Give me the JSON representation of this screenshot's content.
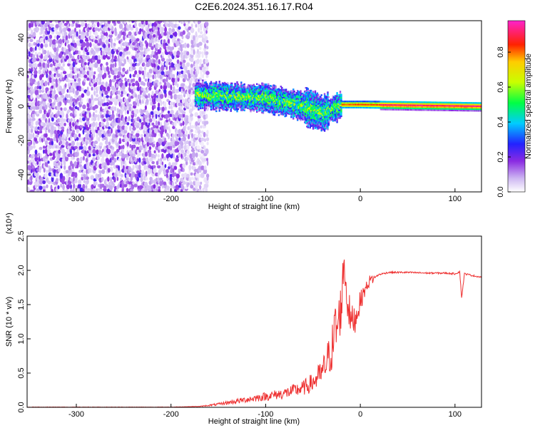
{
  "title": "C2E6.2024.351.16.17.R04",
  "chart_data": [
    {
      "type": "heatmap",
      "xlabel": "Height of straight line (km)",
      "ylabel": "Frequency (Hz)",
      "xlim": [
        -352,
        128
      ],
      "ylim": [
        -50,
        50
      ],
      "xticks": [
        -300,
        -200,
        -100,
        0,
        100
      ],
      "yticks": [
        -40,
        -20,
        0,
        20,
        40
      ],
      "colorbar": {
        "label": "Normalized spectral amplitude",
        "range": [
          0,
          0.98
        ],
        "ticks": [
          "0.0",
          "0.2",
          "0.4",
          "0.6",
          "0.8"
        ],
        "colormap": "white-purple-blue-cyan-green-yellow-red-magenta"
      },
      "features": {
        "noise_region_x": [
          -352,
          -162
        ],
        "signal_region_x": [
          -175,
          128
        ],
        "signal_center_hz": [
          [
            -175,
            7
          ],
          [
            -150,
            6
          ],
          [
            -100,
            5
          ],
          [
            -60,
            0
          ],
          [
            -40,
            -4
          ],
          [
            -20,
            1
          ],
          [
            0,
            1
          ],
          [
            128,
            0
          ]
        ],
        "signal_peak_amplitude": 0.95
      }
    },
    {
      "type": "line",
      "xlabel": "Height of straight line (km)",
      "ylabel": "SNR (10 * v/v)",
      "y_multiplier": "(x10⁴)",
      "xlim": [
        -352,
        128
      ],
      "ylim": [
        0,
        2.5
      ],
      "xticks": [
        -300,
        -200,
        -100,
        0,
        100
      ],
      "yticks": [
        "0.0",
        "0.5",
        "1.0",
        "1.5",
        "2.0",
        "2.5"
      ],
      "color": "#ee2e2e",
      "series": [
        {
          "x": [
            -352,
            -300,
            -250,
            -200,
            -170,
            -150,
            -120,
            -100,
            -80,
            -60,
            -50,
            -40,
            -30,
            -25,
            -20,
            -17,
            -15,
            -10,
            -5,
            0,
            5,
            10,
            20,
            30,
            50,
            70,
            90,
            100,
            105,
            107,
            110,
            120,
            128
          ],
          "values": [
            0.0,
            0.0,
            0.0,
            0.0,
            0.01,
            0.04,
            0.1,
            0.14,
            0.18,
            0.25,
            0.32,
            0.45,
            0.75,
            1.1,
            1.5,
            2.2,
            1.7,
            1.25,
            1.3,
            1.55,
            1.72,
            1.85,
            1.94,
            1.97,
            1.97,
            1.96,
            1.96,
            1.95,
            1.98,
            1.6,
            1.95,
            1.92,
            1.9
          ]
        }
      ]
    }
  ]
}
